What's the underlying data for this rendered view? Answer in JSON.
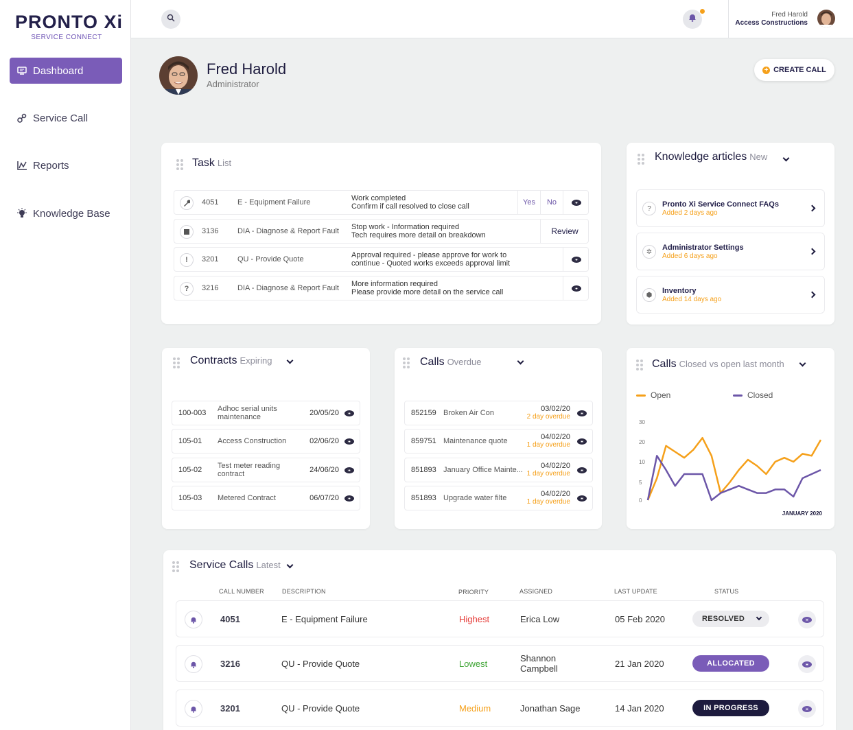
{
  "brand": {
    "name": "PRONTO Xi",
    "subtitle": "SERVICE CONNECT"
  },
  "nav": [
    {
      "label": "Dashboard",
      "icon": "monitor-icon",
      "active": true
    },
    {
      "label": "Service Call",
      "icon": "gears-icon"
    },
    {
      "label": "Reports",
      "icon": "chart-icon"
    },
    {
      "label": "Knowledge Base",
      "icon": "lightbulb-icon"
    }
  ],
  "topbar": {
    "user_name": "Fred Harold",
    "company": "Access Constructions"
  },
  "profile": {
    "name": "Fred Harold",
    "role": "Administrator"
  },
  "create_call": "CREATE CALL",
  "task": {
    "title": "Task",
    "subtitle": "List",
    "rows": [
      {
        "num": "4051",
        "type": "E - Equipment Failure",
        "line1": "Work completed",
        "line2": "Confirm if call resolved to close call",
        "icon": "wrench-icon",
        "actions": [
          "Yes",
          "No"
        ]
      },
      {
        "num": "3136",
        "type": "DIA - Diagnose & Report Fault",
        "line1": "Stop work - Information required",
        "line2": "Tech requires more detail on breakdown",
        "icon": "stop-icon",
        "actions": [
          "Review"
        ]
      },
      {
        "num": "3201",
        "type": "QU - Provide Quote",
        "line1": "Approval required - please approve for work to",
        "line2": "continue - Quoted works exceeds approval limit",
        "icon": "alert-icon"
      },
      {
        "num": "3216",
        "type": "DIA - Diagnose & Report Fault",
        "line1": "More information required",
        "line2": "Please provide more detail on the  service call",
        "icon": "question-icon"
      }
    ]
  },
  "knowledge": {
    "title": "Knowledge articles",
    "subtitle": "New",
    "items": [
      {
        "title": "Pronto Xi Service Connect FAQs",
        "added": "Added 2 days ago",
        "icon": "question-icon"
      },
      {
        "title": "Administrator Settings",
        "added": "Added 6 days ago",
        "icon": "gear-icon"
      },
      {
        "title": "Inventory",
        "added": "Added 14 days ago",
        "icon": "box-icon"
      }
    ]
  },
  "contracts": {
    "title": "Contracts",
    "subtitle": "Expiring",
    "rows": [
      {
        "code": "100-003",
        "desc": "Adhoc serial units maintenance",
        "date": "20/05/20"
      },
      {
        "code": "105-01",
        "desc": "Access Construction",
        "date": "02/06/20"
      },
      {
        "code": "105-02",
        "desc": "Test meter reading contract",
        "date": "24/06/20"
      },
      {
        "code": "105-03",
        "desc": "Metered Contract",
        "date": "06/07/20"
      }
    ]
  },
  "calls_overdue": {
    "title": "Calls",
    "subtitle": "Overdue",
    "rows": [
      {
        "num": "852159",
        "desc": "Broken Air Con",
        "date": "03/02/20",
        "overdue": "2 day overdue"
      },
      {
        "num": "859751",
        "desc": "Maintenance quote",
        "date": "04/02/20",
        "overdue": "1 day overdue"
      },
      {
        "num": "851893",
        "desc": "January Office Mainte...",
        "date": "04/02/20",
        "overdue": "1 day overdue"
      },
      {
        "num": "851893",
        "desc": "Upgrade water filte",
        "date": "04/02/20",
        "overdue": "1 day overdue"
      }
    ]
  },
  "chart_data": {
    "type": "line",
    "title": "Calls",
    "subtitle": "Closed vs open last month",
    "xlabel": "JANUARY 2020",
    "ylabel": "",
    "ylim": [
      0,
      30
    ],
    "yticks": [
      0,
      5,
      10,
      20,
      30
    ],
    "x": [
      1,
      2,
      3,
      4,
      5,
      6,
      7,
      8,
      9,
      10,
      11,
      12,
      13,
      14,
      15,
      16,
      17,
      18,
      19,
      20
    ],
    "series": [
      {
        "name": "Open",
        "color": "#f5a01a",
        "values": [
          0,
          6,
          18,
          15,
          12,
          16,
          22,
          13,
          2,
          5,
          8,
          11,
          9,
          7,
          10,
          12,
          10,
          14,
          13,
          21
        ]
      },
      {
        "name": "Closed",
        "color": "#6c56a8",
        "values": [
          0,
          13,
          8,
          4,
          7,
          7,
          7,
          0,
          2,
          3,
          4,
          3,
          2,
          2,
          3,
          3,
          1,
          6,
          7,
          8
        ]
      }
    ],
    "legend": "top"
  },
  "service_calls": {
    "title": "Service Calls",
    "subtitle": "Latest",
    "headers": [
      "CALL NUMBER",
      "DESCRIPTION",
      "PRIORITY",
      "ASSIGNED",
      "LAST UPDATE",
      "STATUS"
    ],
    "rows": [
      {
        "num": "4051",
        "desc": "E - Equipment Failure",
        "priority": "Highest",
        "priority_color": "#e53935",
        "assigned": "Erica Low",
        "updated": "05 Feb 2020",
        "status": "RESOLVED"
      },
      {
        "num": "3216",
        "desc": "QU - Provide Quote",
        "priority": "Lowest",
        "priority_color": "#3fa535",
        "assigned": "Shannon Campbell",
        "assigned1": "Shannon",
        "assigned2": "Campbell",
        "updated": "21 Jan 2020",
        "status": "ALLOCATED"
      },
      {
        "num": "3201",
        "desc": "QU - Provide Quote",
        "priority": "Medium",
        "priority_color": "#f5a01a",
        "assigned": "Jonathan Sage",
        "updated": "14 Jan 2020",
        "status": "IN PROGRESS"
      }
    ]
  }
}
